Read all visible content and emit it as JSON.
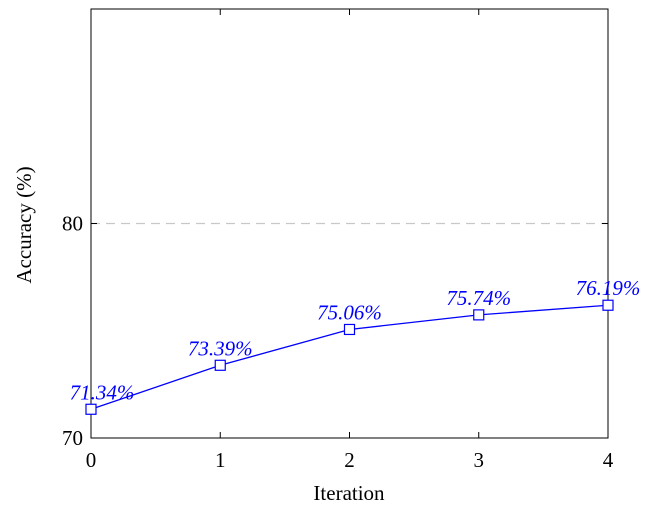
{
  "chart_data": {
    "type": "line",
    "title": "",
    "xlabel": "Iteration",
    "ylabel": "Accuracy (%)",
    "x": [
      0,
      1,
      2,
      3,
      4
    ],
    "x_ticks": [
      "0",
      "1",
      "2",
      "3",
      "4"
    ],
    "y_ticks": [
      "70",
      "80"
    ],
    "xlim": [
      0,
      4
    ],
    "ylim": [
      70,
      90
    ],
    "grid": "dashed horizontal line at y = 80",
    "legend": "none",
    "marker": "square",
    "series": [
      {
        "values": [
          71.34,
          73.39,
          75.06,
          75.74,
          76.19
        ],
        "labels": [
          "71.34%",
          "73.39%",
          "75.06%",
          "75.74%",
          "76.19%"
        ],
        "color": "#0000ff"
      }
    ]
  }
}
